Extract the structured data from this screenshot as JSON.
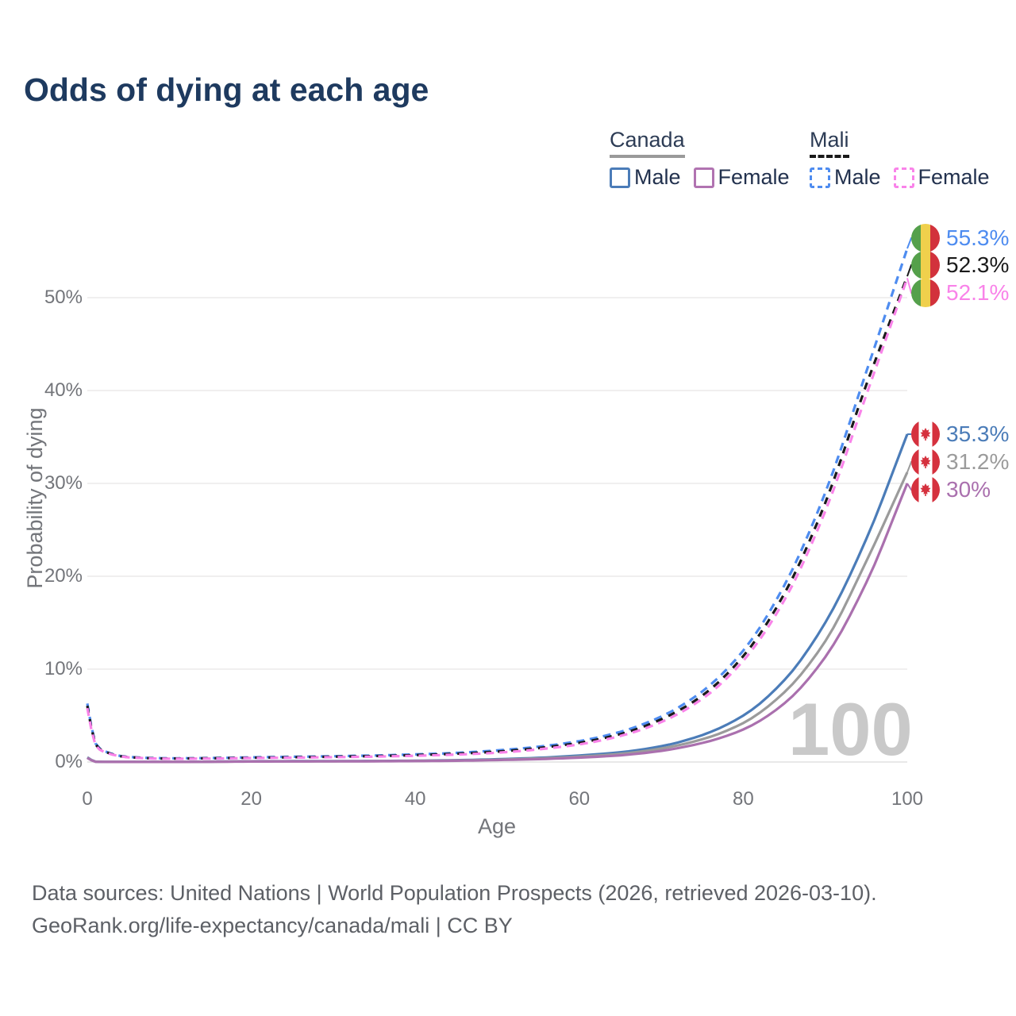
{
  "title": "Odds of dying at each age",
  "watermark_age": "100",
  "colors": {
    "title": "#1e3a5f",
    "axis_text": "#73757a",
    "grid": "#e9e9e9",
    "watermark": "#c9c9c9",
    "legend_text": "#22314e",
    "canada_underline": "#9a9a9a",
    "mali_underline": "#1a1a1a"
  },
  "legend": {
    "groups": [
      {
        "label": "Canada",
        "line_style": "solid",
        "underline_color": "#9a9a9a",
        "items": [
          {
            "label": "Male",
            "color": "#4b7cb8",
            "dashed": false
          },
          {
            "label": "Female",
            "color": "#b173b1",
            "dashed": false
          }
        ]
      },
      {
        "label": "Mali",
        "line_style": "dashed",
        "underline_color": "#1a1a1a",
        "items": [
          {
            "label": "Male",
            "color": "#4e8cf0",
            "dashed": true
          },
          {
            "label": "Female",
            "color": "#f983e9",
            "dashed": true
          }
        ]
      }
    ]
  },
  "chart_data": {
    "type": "line",
    "title": "Odds of dying at each age",
    "xlabel": "Age",
    "ylabel": "Probability of dying",
    "xlim": [
      0,
      100
    ],
    "ylim": [
      0,
      57
    ],
    "grid": "horizontal",
    "x_ticks": [
      {
        "label": "0",
        "value": 0
      },
      {
        "label": "20",
        "value": 20
      },
      {
        "label": "40",
        "value": 40
      },
      {
        "label": "60",
        "value": 60
      },
      {
        "label": "80",
        "value": 80
      },
      {
        "label": "100",
        "value": 100
      }
    ],
    "y_ticks": [
      {
        "label": "0%",
        "value": 0
      },
      {
        "label": "10%",
        "value": 10
      },
      {
        "label": "20%",
        "value": 20
      },
      {
        "label": "30%",
        "value": 30
      },
      {
        "label": "40%",
        "value": 40
      },
      {
        "label": "50%",
        "value": 50
      }
    ],
    "ages": [
      0,
      1,
      2,
      5,
      10,
      15,
      20,
      25,
      30,
      35,
      40,
      45,
      50,
      55,
      60,
      65,
      70,
      75,
      80,
      85,
      90,
      95,
      100
    ],
    "series": [
      {
        "name": "Mali Male",
        "country": "Mali",
        "sex": "Male",
        "color": "#4e8cf0",
        "dash": "10 7",
        "flag": "mali-flag-icon",
        "end_label": "55.3%",
        "end_value": 55.3,
        "values": [
          6.3,
          2.0,
          1.2,
          0.55,
          0.4,
          0.43,
          0.5,
          0.56,
          0.62,
          0.7,
          0.82,
          0.98,
          1.25,
          1.65,
          2.25,
          3.25,
          4.9,
          7.6,
          12.0,
          19.0,
          29.0,
          42.0,
          55.3
        ]
      },
      {
        "name": "Mali",
        "country": "Mali",
        "sex": "Both",
        "color": "#1a1a1a",
        "dash": "9 8",
        "flag": "mali-flag-icon",
        "end_label": "52.3%",
        "end_value": 52.3,
        "values": [
          6.05,
          1.9,
          1.15,
          0.52,
          0.37,
          0.4,
          0.46,
          0.51,
          0.57,
          0.64,
          0.74,
          0.89,
          1.12,
          1.5,
          2.07,
          3.0,
          4.6,
          7.15,
          11.4,
          18.1,
          27.9,
          40.6,
          52.3
        ]
      },
      {
        "name": "Mali Female",
        "country": "Mali",
        "sex": "Female",
        "color": "#f983e9",
        "dash": "10 7",
        "flag": "mali-flag-icon",
        "end_label": "52.1%",
        "end_value": 52.1,
        "values": [
          5.8,
          1.8,
          1.1,
          0.5,
          0.35,
          0.37,
          0.43,
          0.47,
          0.52,
          0.58,
          0.67,
          0.8,
          1.0,
          1.36,
          1.9,
          2.8,
          4.3,
          6.8,
          10.9,
          17.4,
          27.0,
          39.5,
          52.1
        ]
      },
      {
        "name": "Canada Male",
        "country": "Canada",
        "sex": "Male",
        "color": "#4b7cb8",
        "dash": null,
        "flag": "canada-flag-icon",
        "end_label": "35.3%",
        "end_value": 35.3,
        "values": [
          0.5,
          0.04,
          0.02,
          0.01,
          0.01,
          0.04,
          0.08,
          0.09,
          0.1,
          0.11,
          0.14,
          0.2,
          0.3,
          0.45,
          0.7,
          1.05,
          1.7,
          2.9,
          5.0,
          8.8,
          15.0,
          24.0,
          35.3
        ]
      },
      {
        "name": "Canada",
        "country": "Canada",
        "sex": "Both",
        "color": "#9b9b9b",
        "dash": null,
        "flag": "canada-flag-icon",
        "end_label": "31.2%",
        "end_value": 31.2,
        "values": [
          0.47,
          0.035,
          0.018,
          0.01,
          0.01,
          0.03,
          0.06,
          0.07,
          0.08,
          0.09,
          0.12,
          0.17,
          0.25,
          0.38,
          0.58,
          0.88,
          1.45,
          2.45,
          4.2,
          7.5,
          13.0,
          21.6,
          31.2
        ]
      },
      {
        "name": "Canada Female",
        "country": "Canada",
        "sex": "Female",
        "color": "#aa70ae",
        "dash": null,
        "flag": "canada-flag-icon",
        "end_label": "30%",
        "end_value": 30.0,
        "values": [
          0.44,
          0.03,
          0.015,
          0.01,
          0.01,
          0.02,
          0.05,
          0.06,
          0.07,
          0.08,
          0.1,
          0.14,
          0.21,
          0.31,
          0.47,
          0.72,
          1.2,
          2.05,
          3.5,
          6.3,
          11.3,
          19.3,
          30.0
        ]
      }
    ],
    "flag_colors": {
      "mali": {
        "green": "#55a04b",
        "yellow": "#f0d04c",
        "red": "#d2323c"
      },
      "canada": {
        "red": "#d5313e",
        "white": "#ffffff"
      }
    }
  },
  "footer": {
    "line1": "Data sources: United Nations | World Population Prospects (2026, retrieved 2026-03-10).",
    "line2": "GeoRank.org/life-expectancy/canada/mali | CC BY"
  }
}
